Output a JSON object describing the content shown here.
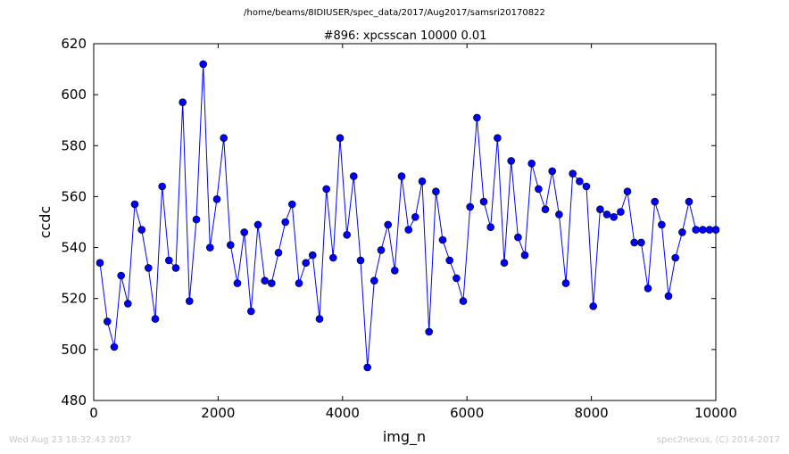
{
  "header": {
    "path": "/home/beams/8IDIUSER/spec_data/2017/Aug2017/samsri20170822"
  },
  "footer": {
    "timestamp": "Wed Aug 23 18:32:43 2017",
    "credit": "spec2nexus, (C) 2014-2017"
  },
  "chart_data": {
    "type": "line",
    "title": "#896: xpcsscan 10000 0.01",
    "xlabel": "img_n",
    "ylabel": "ccdc",
    "xlim": [
      0,
      10000
    ],
    "ylim": [
      480,
      620
    ],
    "xticks": [
      0,
      2000,
      4000,
      6000,
      8000,
      10000
    ],
    "yticks": [
      480,
      500,
      520,
      540,
      560,
      580,
      600,
      620
    ],
    "grid": false,
    "line_color": "#0000ff",
    "marker": "circle",
    "series": [
      {
        "x": [
          100,
          220,
          330,
          440,
          550,
          660,
          770,
          880,
          990,
          1100,
          1210,
          1320,
          1430,
          1540,
          1650,
          1760,
          1870,
          1980,
          2090,
          2200,
          2310,
          2420,
          2530,
          2640,
          2750,
          2860,
          2970,
          3080,
          3190,
          3300,
          3410,
          3520,
          3630,
          3740,
          3850,
          3960,
          4070,
          4180,
          4290,
          4400,
          4510,
          4620,
          4730,
          4840,
          4950,
          5060,
          5170,
          5280,
          5390,
          5500,
          5610,
          5720,
          5830,
          5940,
          6050,
          6160,
          6270,
          6380,
          6490,
          6600,
          6710,
          6820,
          6930,
          7040,
          7150,
          7260,
          7370,
          7480,
          7590,
          7700,
          7810,
          7920,
          8030,
          8140,
          8250,
          8360,
          8470,
          8580,
          8690,
          8800,
          8910,
          9020,
          9130,
          9240,
          9350,
          9460,
          9570,
          9680,
          9790,
          9900,
          10000
        ],
        "y": [
          534,
          511,
          501,
          529,
          518,
          557,
          547,
          532,
          512,
          564,
          535,
          532,
          597,
          519,
          551,
          612,
          540,
          559,
          583,
          541,
          526,
          546,
          515,
          549,
          527,
          526,
          538,
          550,
          557,
          526,
          534,
          537,
          512,
          563,
          536,
          583,
          545,
          568,
          535,
          493,
          527,
          539,
          549,
          531,
          568,
          547,
          552,
          566,
          507,
          562,
          543,
          535,
          528,
          519,
          556,
          591,
          558,
          548,
          583,
          534,
          574,
          544,
          537,
          573,
          563,
          555,
          570,
          553,
          526,
          569,
          566,
          564,
          517,
          555,
          553,
          552,
          554,
          562,
          542,
          542,
          524,
          558,
          549,
          521,
          536,
          546,
          558,
          547,
          547,
          547,
          547
        ]
      }
    ]
  }
}
